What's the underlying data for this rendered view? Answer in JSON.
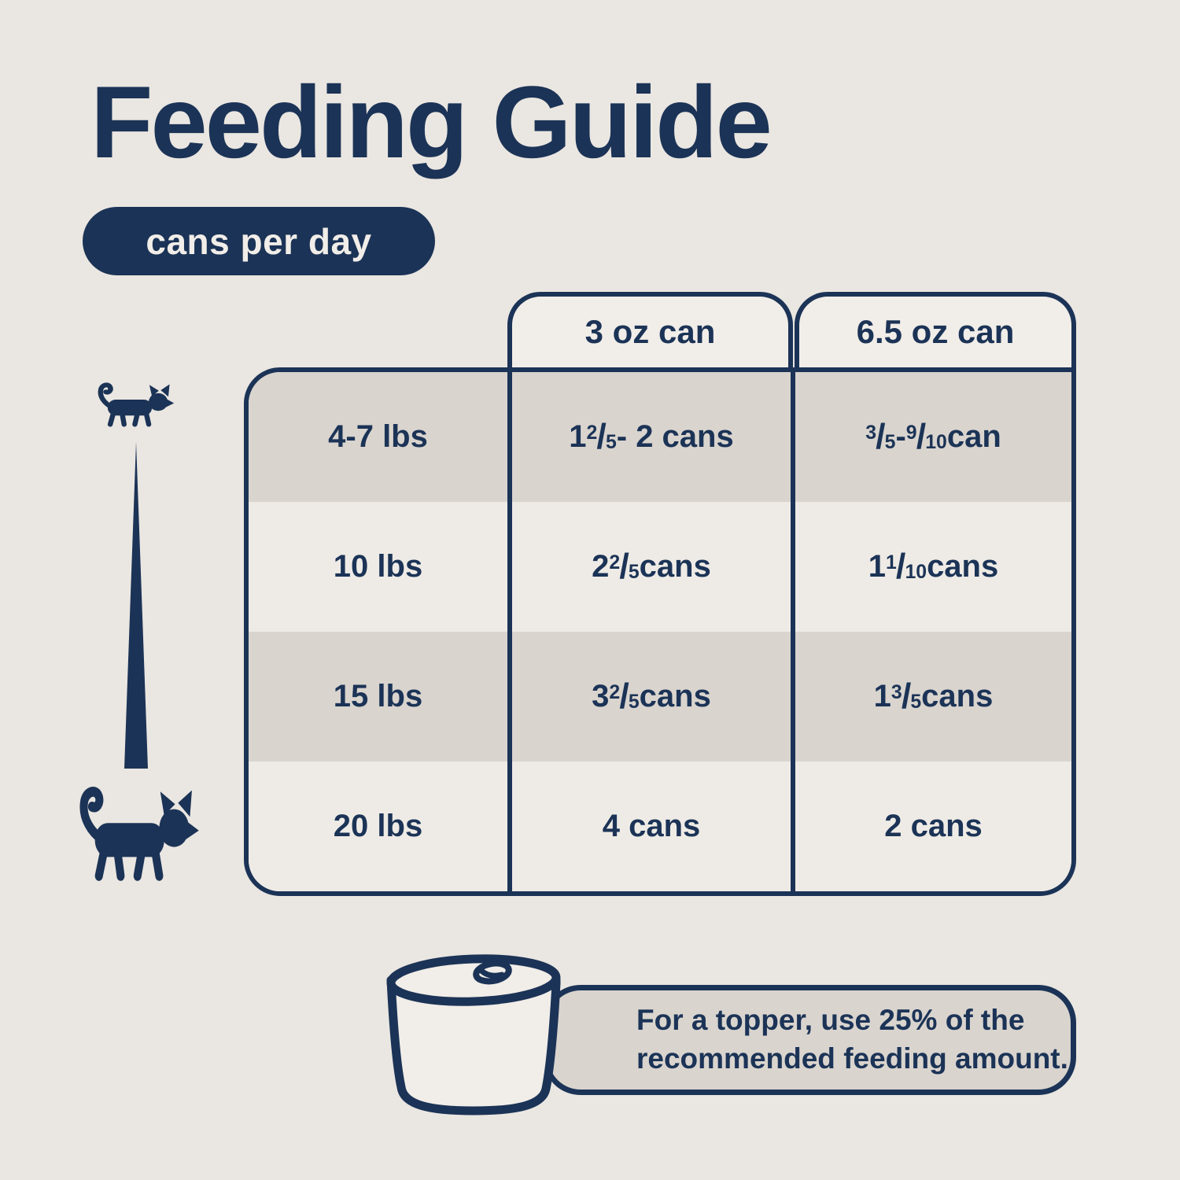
{
  "title": "Feeding Guide",
  "badge": "cans per day",
  "table": {
    "col_headers": [
      "3 oz can",
      "6.5 oz can"
    ],
    "rows": [
      {
        "weight": "4-7 lbs",
        "small_can": "1{2/5} - 2 cans",
        "large_can": "{3/5} - {9/10} can"
      },
      {
        "weight": "10 lbs",
        "small_can": "2 {2/5} cans",
        "large_can": "1 {1/10} cans"
      },
      {
        "weight": "15 lbs",
        "small_can": "3 {2/5} cans",
        "large_can": "1 {3/5} cans"
      },
      {
        "weight": "20 lbs",
        "small_can": "4 cans",
        "large_can": "2 cans"
      }
    ]
  },
  "note": "For a topper, use 25% of the recommended feeding amount.",
  "icons": {
    "small_cat": "small-cat-icon",
    "large_cat": "large-cat-icon",
    "size_wedge": "weight-scale-wedge",
    "can": "cat-food-can-icon"
  },
  "colors": {
    "navy": "#1b3356",
    "background": "#eae6e1",
    "cream": "#f1ede8",
    "row_gray": "#d9d4ce"
  },
  "chart_data": {
    "type": "table",
    "title": "Feeding Guide",
    "subtitle": "cans per day",
    "columns": [
      "",
      "3 oz can",
      "6.5 oz can"
    ],
    "rows": [
      [
        "4-7 lbs",
        "1 2/5 - 2 cans",
        "3/5 - 9/10 can"
      ],
      [
        "10 lbs",
        "2 2/5 cans",
        "1 1/10 cans"
      ],
      [
        "15 lbs",
        "3 2/5 cans",
        "1 3/5 cans"
      ],
      [
        "20 lbs",
        "4 cans",
        "2 cans"
      ]
    ],
    "note": "For a topper, use 25% of the recommended feeding amount.",
    "legend_position": "none",
    "grid": false
  }
}
